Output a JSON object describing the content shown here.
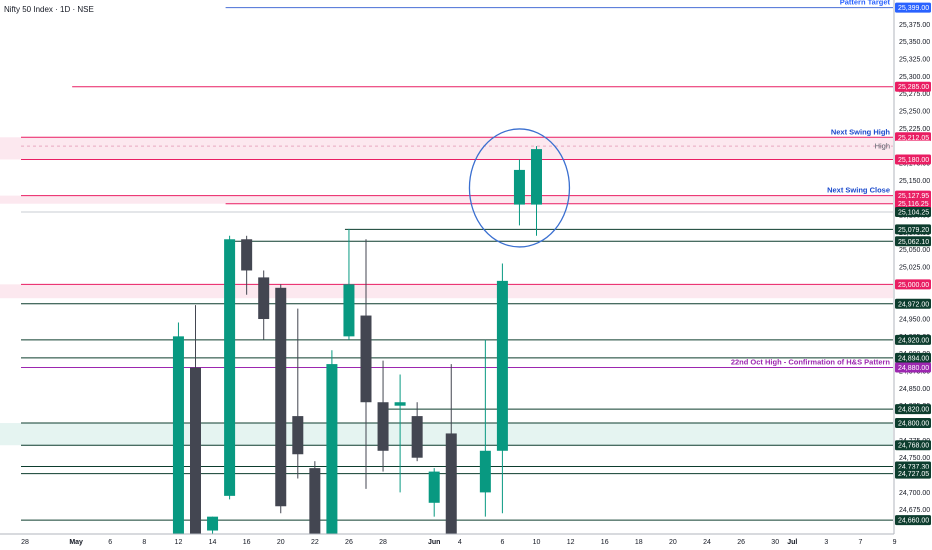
{
  "header": {
    "symbol_title": "Nifty 50 Index · 1D · NSE"
  },
  "colors": {
    "up": "#089981",
    "down": "#434651",
    "blue": "#2962ff",
    "blue_line": "#4a6fd6",
    "pink": "#e91e63",
    "dark_green": "#0d3d2e",
    "zone_pink": "#fce4ec",
    "zone_green": "#e0f2ef",
    "magenta": "#9c27b0",
    "axis_text": "#131722",
    "circle": "#3a6fd0"
  },
  "chart_data": {
    "type": "candlestick",
    "title": "",
    "y_range": [
      24640,
      25410
    ],
    "x_dates": [
      "Apr 28",
      "Apr 29",
      "Apr 30",
      "May 2",
      "May 5",
      "May 6",
      "May 7",
      "May 8",
      "May 9",
      "May 12",
      "May 13",
      "May 14",
      "May 15",
      "May 16",
      "May 19",
      "May 20",
      "May 21",
      "May 22",
      "May 23",
      "May 26",
      "May 27",
      "May 28",
      "May 29",
      "May 30",
      "Jun 2",
      "Jun 3",
      "Jun 4",
      "Jun 5",
      "Jun 6",
      "Jun 9",
      "Jun 10",
      "Jun 11",
      "Jun 12",
      "Jun 13",
      "Jun 16",
      "Jun 17",
      "Jun 18",
      "Jun 19",
      "Jun 20",
      "Jun 23",
      "Jun 24",
      "Jun 25",
      "Jun 26",
      "Jun 27",
      "Jun 30",
      "Jul 1",
      "Jul 2",
      "Jul 3",
      "Jul 4",
      "Jul 7",
      "Jul 8",
      "Jul 9"
    ],
    "x_tick_labels": [
      "28",
      "May",
      "6",
      "8",
      "12",
      "14",
      "16",
      "20",
      "22",
      "26",
      "28",
      "Jun",
      "4",
      "6",
      "10",
      "12",
      "16",
      "18",
      "20",
      "24",
      "26",
      "30",
      "Jul",
      "3",
      "7",
      "9"
    ],
    "candles": [
      {
        "date": "May 12",
        "open": 24640,
        "high": 24945,
        "low": 24640,
        "close": 24925
      },
      {
        "date": "May 13",
        "open": 24880,
        "high": 24970,
        "low": 24640,
        "close": 24640
      },
      {
        "date": "May 14",
        "open": 24645,
        "high": 24665,
        "low": 24640,
        "close": 24665
      },
      {
        "date": "May 15",
        "open": 24695,
        "high": 25070,
        "low": 24690,
        "close": 25065
      },
      {
        "date": "May 16",
        "open": 25065,
        "high": 25070,
        "low": 24985,
        "close": 25020
      },
      {
        "date": "May 19",
        "open": 25010,
        "high": 25020,
        "low": 24920,
        "close": 24950
      },
      {
        "date": "May 20",
        "open": 24995,
        "high": 25000,
        "low": 24670,
        "close": 24680
      },
      {
        "date": "May 21",
        "open": 24810,
        "high": 24965,
        "low": 24720,
        "close": 24755
      },
      {
        "date": "May 22",
        "open": 24735,
        "high": 24745,
        "low": 24640,
        "close": 24640
      },
      {
        "date": "May 23",
        "open": 24640,
        "high": 24905,
        "low": 24640,
        "close": 24885
      },
      {
        "date": "May 26",
        "open": 24925,
        "high": 25080,
        "low": 24920,
        "close": 25000
      },
      {
        "date": "May 27",
        "open": 24955,
        "high": 25065,
        "low": 24705,
        "close": 24830
      },
      {
        "date": "May 28",
        "open": 24830,
        "high": 24890,
        "low": 24730,
        "close": 24760
      },
      {
        "date": "May 29",
        "open": 24825,
        "high": 24870,
        "low": 24700,
        "close": 24830
      },
      {
        "date": "May 30",
        "open": 24810,
        "high": 24830,
        "low": 24745,
        "close": 24750
      },
      {
        "date": "Jun 2",
        "open": 24685,
        "high": 24735,
        "low": 24665,
        "close": 24730
      },
      {
        "date": "Jun 3",
        "open": 24785,
        "high": 24885,
        "low": 24640,
        "close": 24640
      },
      {
        "date": "Jun 5",
        "open": 24700,
        "high": 24920,
        "low": 24665,
        "close": 24760
      },
      {
        "date": "Jun 6",
        "open": 24760,
        "high": 25030,
        "low": 24670,
        "close": 25005
      },
      {
        "date": "Jun 9",
        "open": 25115,
        "high": 25180,
        "low": 25085,
        "close": 25165
      },
      {
        "date": "Jun 10",
        "open": 25115,
        "high": 25199.3,
        "low": 25070,
        "close": 25195
      }
    ],
    "y_ticks": [
      24675,
      24700,
      24725,
      24750,
      24775,
      24800,
      24825,
      24850,
      24875,
      24900,
      24925,
      24950,
      24975,
      25025,
      25050,
      25075,
      25100,
      25125,
      25150,
      25175,
      25225,
      25250,
      25275,
      25300,
      25325,
      25350,
      25375
    ],
    "y_tick_labels": [
      "24,675.00",
      "24,700.00",
      "24,725.00",
      "24,750.00",
      "24,775.00",
      "24,800.00",
      "24,825.00",
      "24,850.00",
      "24,875.00",
      "24,900.00",
      "24,925.00",
      "24,950.00",
      "24,975.00",
      "25,025.00",
      "25,050.00",
      "25,075.00",
      "25,100.00",
      "25,125.00",
      "25,150.00",
      "25,175.00",
      "25,225.00",
      "25,250.00",
      "25,275.00",
      "25,300.00",
      "25,325.00",
      "25,350.00",
      "25,375.00"
    ],
    "levels": [
      {
        "value": 25399,
        "label": "25,399.00",
        "color": "blue",
        "x_start": "May 15",
        "annotation": "Pattern Target"
      },
      {
        "value": 25285,
        "label": "25,285.00",
        "color": "pink",
        "x_start": "May 2"
      },
      {
        "value": 25212.05,
        "label": "25,212.05",
        "color": "pink",
        "x_start": "Apr 28",
        "annotation": "Next Swing High"
      },
      {
        "value": 25199.3,
        "label": "25,199.30",
        "color": "gray_dash",
        "x_start": "Apr 28",
        "annotation": "High"
      },
      {
        "value": 25180,
        "label": "25,180.00",
        "color": "pink",
        "x_start": "Apr 28"
      },
      {
        "value": 25127.95,
        "label": "25,127.95",
        "color": "pink",
        "x_start": "Apr 28",
        "annotation": "Next Swing Close"
      },
      {
        "value": 25116.25,
        "label": "25,116.25",
        "color": "pink",
        "x_start": "May 15"
      },
      {
        "value": 25104.25,
        "label": "25,104.25",
        "color": "dark",
        "x_start": "Apr 28"
      },
      {
        "value": 25079.2,
        "label": "25,079.20",
        "color": "dark_green",
        "x_start": "May 26"
      },
      {
        "value": 25062.1,
        "label": "25,062.10",
        "color": "dark_green",
        "x_start": "May 15"
      },
      {
        "value": 25000,
        "label": "25,000.00",
        "color": "pink",
        "x_start": "Apr 28"
      },
      {
        "value": 24972,
        "label": "24,972.00",
        "color": "dark_green",
        "x_start": "Apr 28"
      },
      {
        "value": 24920,
        "label": "24,920.00",
        "color": "dark_green",
        "x_start": "Apr 28"
      },
      {
        "value": 24894,
        "label": "24,894.00",
        "color": "dark_green",
        "x_start": "Apr 28"
      },
      {
        "value": 24880,
        "label": "24,880.00",
        "color": "magenta",
        "x_start": "Apr 28",
        "annotation": "22nd Oct High - Confirmation of H&S Pattern"
      },
      {
        "value": 24820,
        "label": "24,820.00",
        "color": "dark_green",
        "x_start": "May 28"
      },
      {
        "value": 24800,
        "label": "24,800.00",
        "color": "dark_green",
        "x_start": "Apr 28"
      },
      {
        "value": 24768,
        "label": "24,768.00",
        "color": "dark_green",
        "x_start": "Apr 28"
      },
      {
        "value": 24737.3,
        "label": "24,737.30",
        "color": "dark_green",
        "x_start": "Apr 28"
      },
      {
        "value": 24727.05,
        "label": "24,727.05",
        "color": "dark_green",
        "x_start": "Apr 28"
      },
      {
        "value": 24660,
        "label": "24,660.00",
        "color": "dark_green",
        "x_start": "Apr 28"
      }
    ],
    "zones": [
      {
        "top": 25212.05,
        "bottom": 25180,
        "color": "pink"
      },
      {
        "top": 25127.95,
        "bottom": 25116.25,
        "color": "pink"
      },
      {
        "top": 25000,
        "bottom": 24980,
        "color": "pink"
      },
      {
        "top": 24800,
        "bottom": 24768,
        "color": "green"
      }
    ],
    "highlight_circle": {
      "center_date": "Jun 9",
      "center_value": 25139
    }
  }
}
